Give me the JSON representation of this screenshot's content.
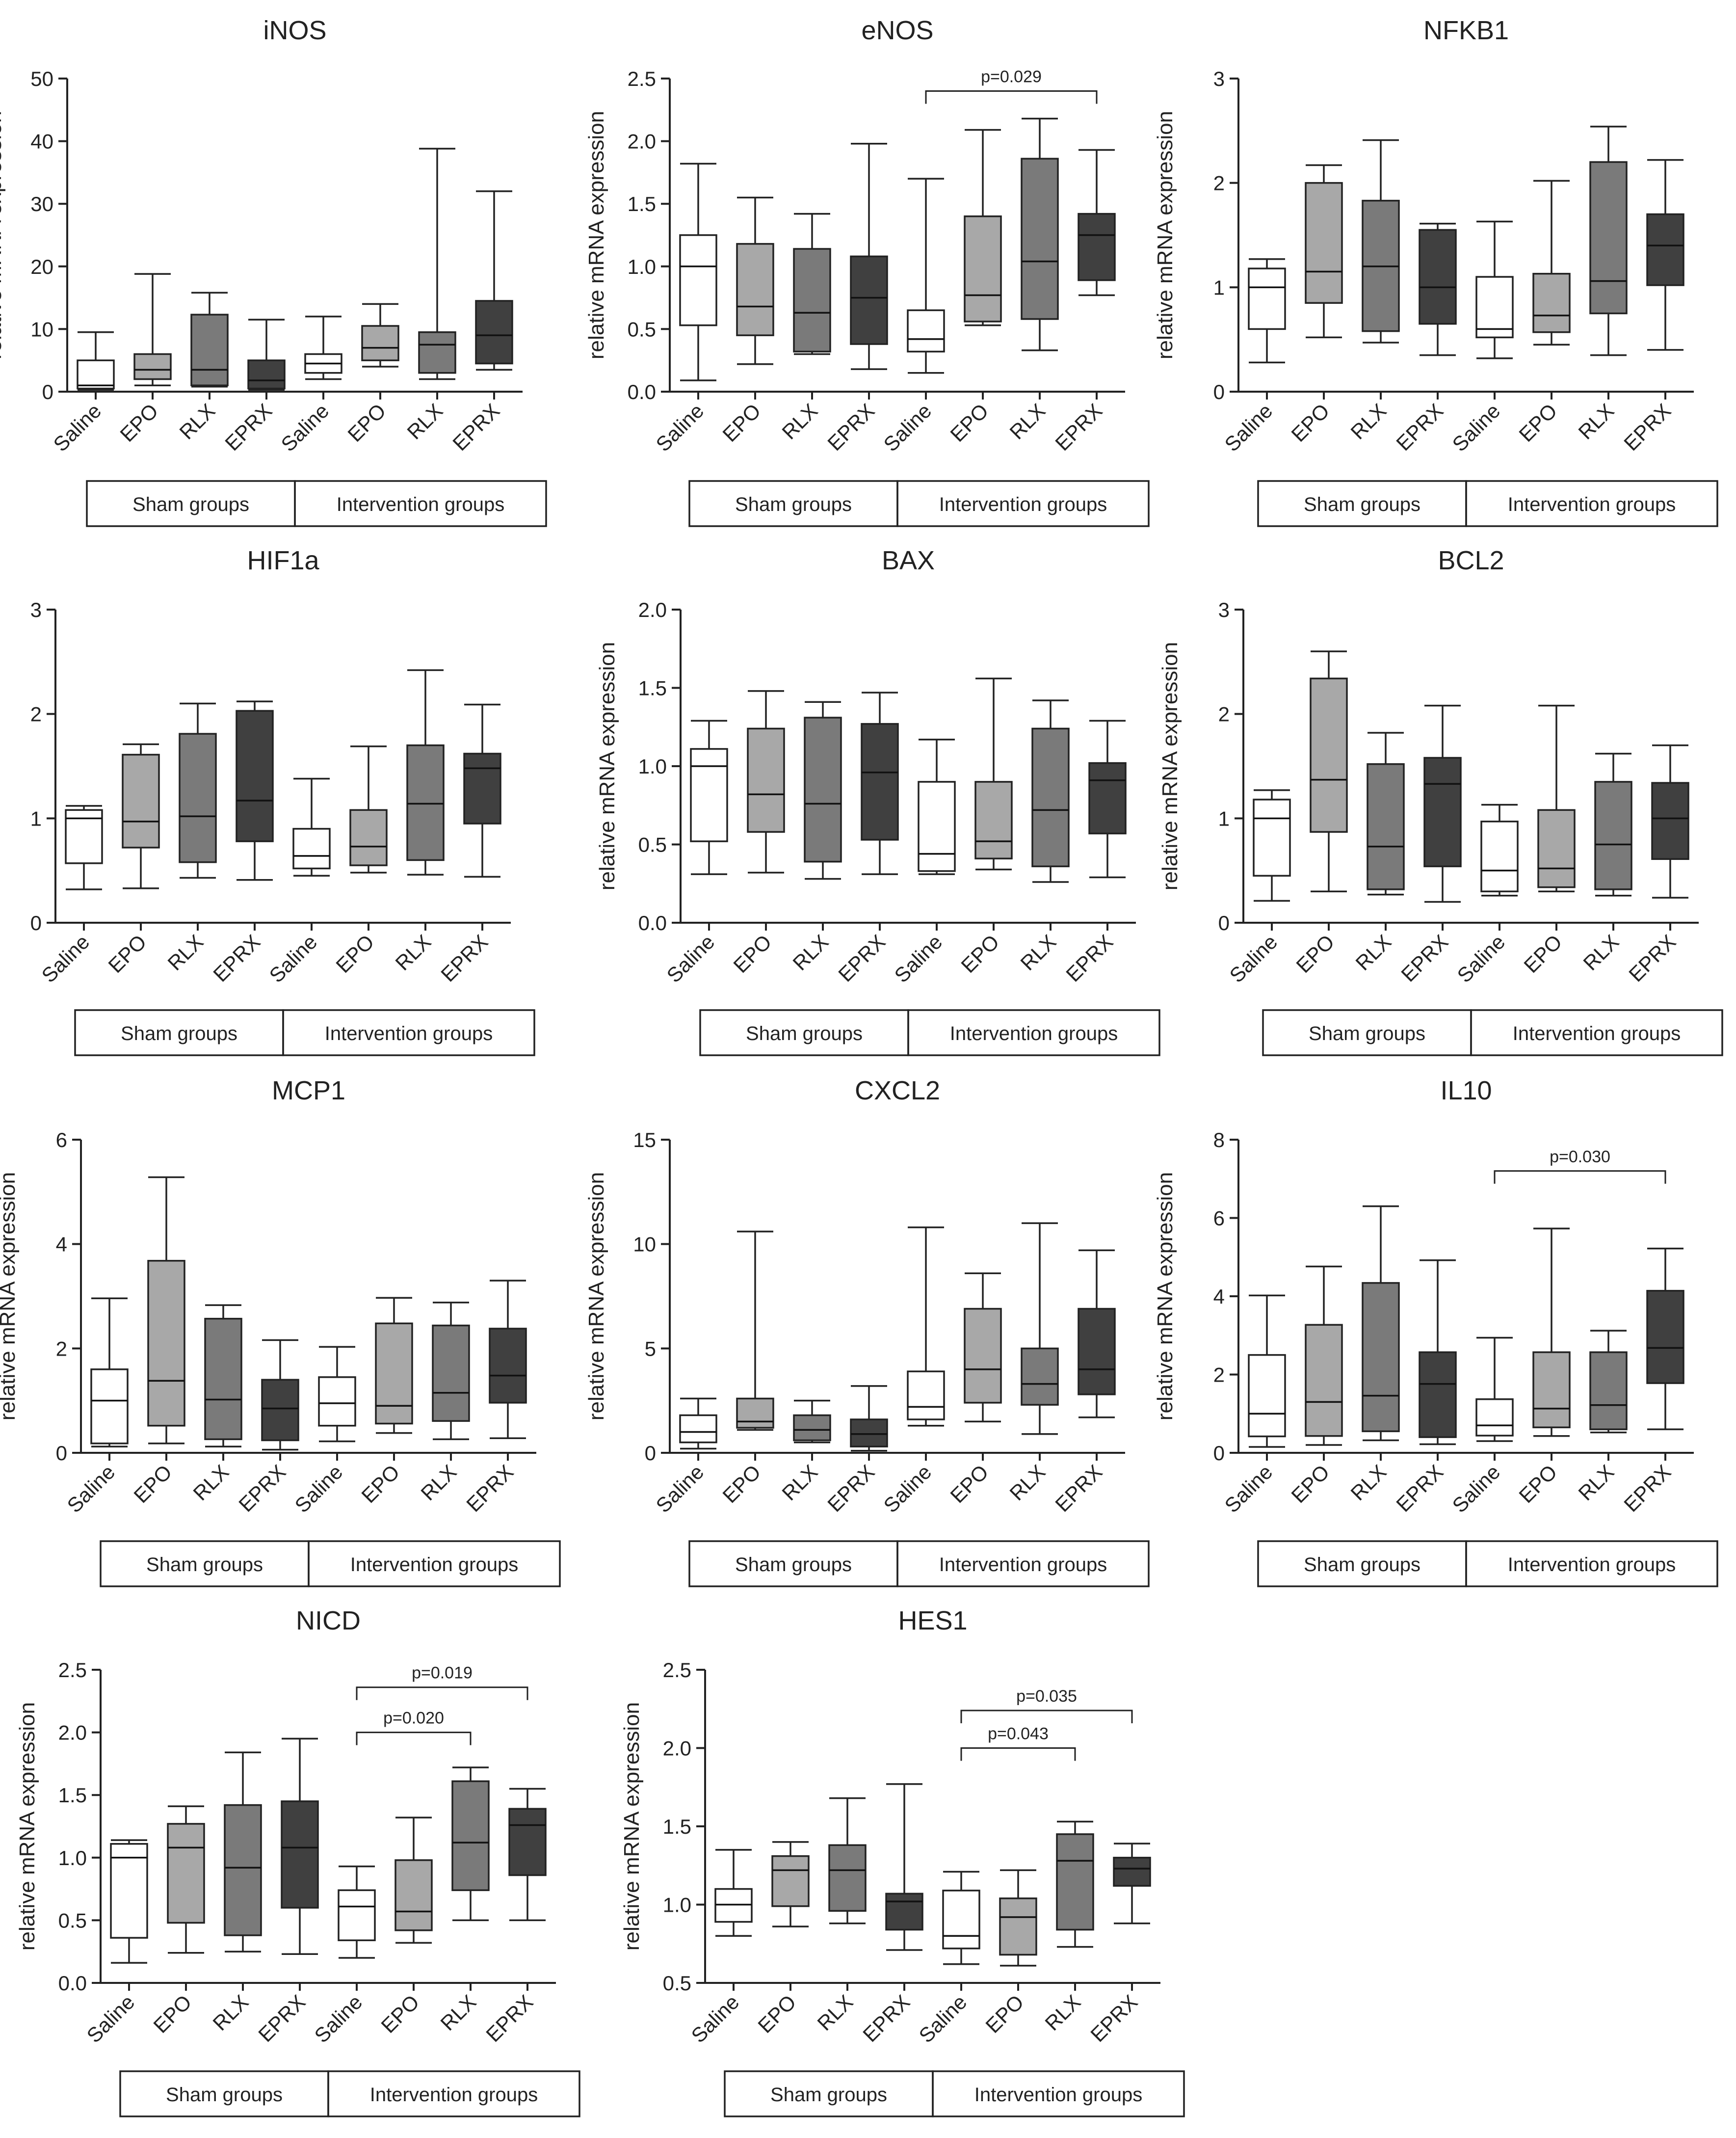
{
  "colors": {
    "Saline": "#ffffff",
    "EPO": "#a8a8a8",
    "RLX": "#7a7a7a",
    "EPRX": "#404040",
    "stroke": "#222222"
  },
  "shared": {
    "ylabel": "relative mRNA expression",
    "categories": [
      "Saline",
      "EPO",
      "RLX",
      "EPRX",
      "Saline",
      "EPO",
      "RLX",
      "EPRX"
    ],
    "group_labels": [
      "Sham groups",
      "Intervention groups"
    ]
  },
  "chart_data": [
    {
      "type": "box",
      "title": "iNOS",
      "ylim": [
        0,
        50
      ],
      "ticks": [
        "0",
        "10",
        "20",
        "30",
        "40",
        "50"
      ],
      "boxes": [
        {
          "min": 0.3,
          "q1": 0.5,
          "median": 1.0,
          "q3": 5.0,
          "max": 9.5
        },
        {
          "min": 1.0,
          "q1": 2.0,
          "median": 3.5,
          "q3": 6.0,
          "max": 18.8
        },
        {
          "min": 0.8,
          "q1": 1.0,
          "median": 3.5,
          "q3": 12.3,
          "max": 15.8
        },
        {
          "min": 0.3,
          "q1": 0.5,
          "median": 1.8,
          "q3": 5.0,
          "max": 11.5
        },
        {
          "min": 2.0,
          "q1": 3.0,
          "median": 4.5,
          "q3": 6.0,
          "max": 12.0
        },
        {
          "min": 4.0,
          "q1": 5.0,
          "median": 7.0,
          "q3": 10.5,
          "max": 14.0
        },
        {
          "min": 2.0,
          "q1": 3.0,
          "median": 7.5,
          "q3": 9.5,
          "max": 38.8
        },
        {
          "min": 3.5,
          "q1": 4.5,
          "median": 9.0,
          "q3": 14.5,
          "max": 32.0
        }
      ],
      "comparisons": []
    },
    {
      "type": "box",
      "title": "eNOS",
      "ylim": [
        0,
        2.5
      ],
      "ticks": [
        "0.0",
        "0.5",
        "1.0",
        "1.5",
        "2.0",
        "2.5"
      ],
      "boxes": [
        {
          "min": 0.09,
          "q1": 0.53,
          "median": 1.0,
          "q3": 1.25,
          "max": 1.82
        },
        {
          "min": 0.22,
          "q1": 0.45,
          "median": 0.68,
          "q3": 1.18,
          "max": 1.55
        },
        {
          "min": 0.3,
          "q1": 0.32,
          "median": 0.63,
          "q3": 1.14,
          "max": 1.42
        },
        {
          "min": 0.18,
          "q1": 0.38,
          "median": 0.75,
          "q3": 1.08,
          "max": 1.98
        },
        {
          "min": 0.15,
          "q1": 0.32,
          "median": 0.42,
          "q3": 0.65,
          "max": 1.7
        },
        {
          "min": 0.53,
          "q1": 0.56,
          "median": 0.77,
          "q3": 1.4,
          "max": 2.09
        },
        {
          "min": 0.33,
          "q1": 0.58,
          "median": 1.04,
          "q3": 1.86,
          "max": 2.18
        },
        {
          "min": 0.77,
          "q1": 0.89,
          "median": 1.25,
          "q3": 1.42,
          "max": 1.93
        }
      ],
      "comparisons": [
        {
          "from": 4,
          "to": 7,
          "label": "p=0.029",
          "y": 2.4
        }
      ]
    },
    {
      "type": "box",
      "title": "NFKB1",
      "ylim": [
        0,
        3
      ],
      "ticks": [
        "0",
        "1",
        "2",
        "3"
      ],
      "boxes": [
        {
          "min": 0.28,
          "q1": 0.6,
          "median": 1.0,
          "q3": 1.18,
          "max": 1.27
        },
        {
          "min": 0.52,
          "q1": 0.85,
          "median": 1.15,
          "q3": 2.0,
          "max": 2.17
        },
        {
          "min": 0.47,
          "q1": 0.58,
          "median": 1.2,
          "q3": 1.83,
          "max": 2.41
        },
        {
          "min": 0.35,
          "q1": 0.65,
          "median": 1.0,
          "q3": 1.55,
          "max": 1.61
        },
        {
          "min": 0.32,
          "q1": 0.52,
          "median": 0.6,
          "q3": 1.1,
          "max": 1.63
        },
        {
          "min": 0.45,
          "q1": 0.57,
          "median": 0.73,
          "q3": 1.13,
          "max": 2.02
        },
        {
          "min": 0.35,
          "q1": 0.75,
          "median": 1.06,
          "q3": 2.2,
          "max": 2.54
        },
        {
          "min": 0.4,
          "q1": 1.02,
          "median": 1.4,
          "q3": 1.7,
          "max": 2.22
        }
      ],
      "comparisons": []
    },
    {
      "type": "box",
      "title": "HIF1a",
      "ylim": [
        0,
        3
      ],
      "ticks": [
        "0",
        "1",
        "2",
        "3"
      ],
      "boxes": [
        {
          "min": 0.32,
          "q1": 0.57,
          "median": 1.0,
          "q3": 1.08,
          "max": 1.12
        },
        {
          "min": 0.33,
          "q1": 0.72,
          "median": 0.97,
          "q3": 1.61,
          "max": 1.71
        },
        {
          "min": 0.43,
          "q1": 0.58,
          "median": 1.02,
          "q3": 1.81,
          "max": 2.1
        },
        {
          "min": 0.41,
          "q1": 0.78,
          "median": 1.17,
          "q3": 2.03,
          "max": 2.12
        },
        {
          "min": 0.45,
          "q1": 0.52,
          "median": 0.64,
          "q3": 0.9,
          "max": 1.38
        },
        {
          "min": 0.48,
          "q1": 0.55,
          "median": 0.73,
          "q3": 1.08,
          "max": 1.69
        },
        {
          "min": 0.46,
          "q1": 0.6,
          "median": 1.14,
          "q3": 1.7,
          "max": 2.42
        },
        {
          "min": 0.44,
          "q1": 0.95,
          "median": 1.48,
          "q3": 1.62,
          "max": 2.09
        }
      ],
      "comparisons": []
    },
    {
      "type": "box",
      "title": "BAX",
      "ylim": [
        0,
        2
      ],
      "ticks": [
        "0.0",
        "0.5",
        "1.0",
        "1.5",
        "2.0"
      ],
      "boxes": [
        {
          "min": 0.31,
          "q1": 0.52,
          "median": 1.0,
          "q3": 1.11,
          "max": 1.29
        },
        {
          "min": 0.32,
          "q1": 0.58,
          "median": 0.82,
          "q3": 1.24,
          "max": 1.48
        },
        {
          "min": 0.28,
          "q1": 0.39,
          "median": 0.76,
          "q3": 1.31,
          "max": 1.41
        },
        {
          "min": 0.31,
          "q1": 0.53,
          "median": 0.96,
          "q3": 1.27,
          "max": 1.47
        },
        {
          "min": 0.31,
          "q1": 0.33,
          "median": 0.44,
          "q3": 0.9,
          "max": 1.17
        },
        {
          "min": 0.34,
          "q1": 0.41,
          "median": 0.52,
          "q3": 0.9,
          "max": 1.56
        },
        {
          "min": 0.26,
          "q1": 0.36,
          "median": 0.72,
          "q3": 1.24,
          "max": 1.42
        },
        {
          "min": 0.29,
          "q1": 0.57,
          "median": 0.91,
          "q3": 1.02,
          "max": 1.29
        }
      ],
      "comparisons": []
    },
    {
      "type": "box",
      "title": "BCL2",
      "ylim": [
        0,
        3
      ],
      "ticks": [
        "0",
        "1",
        "2",
        "3"
      ],
      "boxes": [
        {
          "min": 0.21,
          "q1": 0.45,
          "median": 1.0,
          "q3": 1.18,
          "max": 1.27
        },
        {
          "min": 0.3,
          "q1": 0.87,
          "median": 1.37,
          "q3": 2.34,
          "max": 2.6
        },
        {
          "min": 0.27,
          "q1": 0.32,
          "median": 0.73,
          "q3": 1.52,
          "max": 1.82
        },
        {
          "min": 0.2,
          "q1": 0.54,
          "median": 1.33,
          "q3": 1.58,
          "max": 2.08
        },
        {
          "min": 0.26,
          "q1": 0.3,
          "median": 0.5,
          "q3": 0.97,
          "max": 1.13
        },
        {
          "min": 0.3,
          "q1": 0.34,
          "median": 0.52,
          "q3": 1.08,
          "max": 2.08
        },
        {
          "min": 0.26,
          "q1": 0.32,
          "median": 0.75,
          "q3": 1.35,
          "max": 1.62
        },
        {
          "min": 0.24,
          "q1": 0.61,
          "median": 1.0,
          "q3": 1.34,
          "max": 1.7
        }
      ],
      "comparisons": []
    },
    {
      "type": "box",
      "title": "MCP1",
      "ylim": [
        0,
        6
      ],
      "ticks": [
        "0",
        "2",
        "4",
        "6"
      ],
      "boxes": [
        {
          "min": 0.12,
          "q1": 0.18,
          "median": 1.0,
          "q3": 1.6,
          "max": 2.96
        },
        {
          "min": 0.18,
          "q1": 0.52,
          "median": 1.38,
          "q3": 3.68,
          "max": 5.28
        },
        {
          "min": 0.12,
          "q1": 0.26,
          "median": 1.02,
          "q3": 2.57,
          "max": 2.83
        },
        {
          "min": 0.06,
          "q1": 0.24,
          "median": 0.85,
          "q3": 1.4,
          "max": 2.16
        },
        {
          "min": 0.22,
          "q1": 0.52,
          "median": 0.95,
          "q3": 1.45,
          "max": 2.03
        },
        {
          "min": 0.38,
          "q1": 0.56,
          "median": 0.9,
          "q3": 2.48,
          "max": 2.97
        },
        {
          "min": 0.26,
          "q1": 0.61,
          "median": 1.15,
          "q3": 2.44,
          "max": 2.88
        },
        {
          "min": 0.28,
          "q1": 0.96,
          "median": 1.48,
          "q3": 2.38,
          "max": 3.3
        }
      ],
      "comparisons": []
    },
    {
      "type": "box",
      "title": "CXCL2",
      "ylim": [
        0,
        15
      ],
      "ticks": [
        "0",
        "5",
        "10",
        "15"
      ],
      "boxes": [
        {
          "min": 0.2,
          "q1": 0.5,
          "median": 1.0,
          "q3": 1.8,
          "max": 2.6
        },
        {
          "min": 1.1,
          "q1": 1.2,
          "median": 1.5,
          "q3": 2.6,
          "max": 10.6
        },
        {
          "min": 0.5,
          "q1": 0.6,
          "median": 1.1,
          "q3": 1.8,
          "max": 2.5
        },
        {
          "min": 0.1,
          "q1": 0.3,
          "median": 0.9,
          "q3": 1.6,
          "max": 3.2
        },
        {
          "min": 1.3,
          "q1": 1.6,
          "median": 2.2,
          "q3": 3.9,
          "max": 10.8
        },
        {
          "min": 1.5,
          "q1": 2.4,
          "median": 4.0,
          "q3": 6.9,
          "max": 8.6
        },
        {
          "min": 0.9,
          "q1": 2.3,
          "median": 3.3,
          "q3": 5.0,
          "max": 11.0
        },
        {
          "min": 1.7,
          "q1": 2.8,
          "median": 4.0,
          "q3": 6.9,
          "max": 9.7
        }
      ],
      "comparisons": []
    },
    {
      "type": "box",
      "title": "IL10",
      "ylim": [
        0,
        8
      ],
      "ticks": [
        "0",
        "2",
        "4",
        "6",
        "8"
      ],
      "boxes": [
        {
          "min": 0.15,
          "q1": 0.42,
          "median": 1.0,
          "q3": 2.5,
          "max": 4.02
        },
        {
          "min": 0.2,
          "q1": 0.43,
          "median": 1.3,
          "q3": 3.27,
          "max": 4.76
        },
        {
          "min": 0.32,
          "q1": 0.55,
          "median": 1.46,
          "q3": 4.34,
          "max": 6.3
        },
        {
          "min": 0.22,
          "q1": 0.4,
          "median": 1.76,
          "q3": 2.57,
          "max": 4.92
        },
        {
          "min": 0.3,
          "q1": 0.44,
          "median": 0.7,
          "q3": 1.37,
          "max": 2.94
        },
        {
          "min": 0.43,
          "q1": 0.65,
          "median": 1.13,
          "q3": 2.57,
          "max": 5.73
        },
        {
          "min": 0.52,
          "q1": 0.6,
          "median": 1.22,
          "q3": 2.57,
          "max": 3.12
        },
        {
          "min": 0.6,
          "q1": 1.78,
          "median": 2.68,
          "q3": 4.14,
          "max": 5.22
        }
      ],
      "comparisons": [
        {
          "from": 4,
          "to": 7,
          "label": "p=0.030",
          "y": 7.2
        }
      ]
    },
    {
      "type": "box",
      "title": "NICD",
      "ylim": [
        0,
        2.5
      ],
      "ticks": [
        "0.0",
        "0.5",
        "1.0",
        "1.5",
        "2.0",
        "2.5"
      ],
      "boxes": [
        {
          "min": 0.16,
          "q1": 0.36,
          "median": 1.0,
          "q3": 1.11,
          "max": 1.14
        },
        {
          "min": 0.24,
          "q1": 0.48,
          "median": 1.08,
          "q3": 1.27,
          "max": 1.41
        },
        {
          "min": 0.25,
          "q1": 0.38,
          "median": 0.92,
          "q3": 1.42,
          "max": 1.84
        },
        {
          "min": 0.23,
          "q1": 0.6,
          "median": 1.08,
          "q3": 1.45,
          "max": 1.95
        },
        {
          "min": 0.2,
          "q1": 0.34,
          "median": 0.61,
          "q3": 0.74,
          "max": 0.93
        },
        {
          "min": 0.32,
          "q1": 0.42,
          "median": 0.57,
          "q3": 0.98,
          "max": 1.32
        },
        {
          "min": 0.5,
          "q1": 0.74,
          "median": 1.12,
          "q3": 1.61,
          "max": 1.72
        },
        {
          "min": 0.5,
          "q1": 0.86,
          "median": 1.26,
          "q3": 1.39,
          "max": 1.55
        }
      ],
      "comparisons": [
        {
          "from": 4,
          "to": 6,
          "label": "p=0.020",
          "y": 2.0
        },
        {
          "from": 4,
          "to": 7,
          "label": "p=0.019",
          "y": 2.36
        }
      ]
    },
    {
      "type": "box",
      "title": "HES1",
      "ylim": [
        0.5,
        2.5
      ],
      "ticks": [
        "0.5",
        "1.0",
        "1.5",
        "2.0",
        "2.5"
      ],
      "boxes": [
        {
          "min": 0.8,
          "q1": 0.89,
          "median": 1.0,
          "q3": 1.1,
          "max": 1.35
        },
        {
          "min": 0.86,
          "q1": 0.99,
          "median": 1.22,
          "q3": 1.31,
          "max": 1.4
        },
        {
          "min": 0.88,
          "q1": 0.96,
          "median": 1.22,
          "q3": 1.38,
          "max": 1.68
        },
        {
          "min": 0.71,
          "q1": 0.84,
          "median": 1.02,
          "q3": 1.07,
          "max": 1.77
        },
        {
          "min": 0.62,
          "q1": 0.72,
          "median": 0.8,
          "q3": 1.09,
          "max": 1.21
        },
        {
          "min": 0.61,
          "q1": 0.68,
          "median": 0.92,
          "q3": 1.04,
          "max": 1.22
        },
        {
          "min": 0.73,
          "q1": 0.84,
          "median": 1.28,
          "q3": 1.45,
          "max": 1.53
        },
        {
          "min": 0.88,
          "q1": 1.12,
          "median": 1.23,
          "q3": 1.3,
          "max": 1.39
        }
      ],
      "comparisons": [
        {
          "from": 4,
          "to": 6,
          "label": "p=0.043",
          "y": 2.0
        },
        {
          "from": 4,
          "to": 7,
          "label": "p=0.035",
          "y": 2.24
        }
      ]
    }
  ]
}
